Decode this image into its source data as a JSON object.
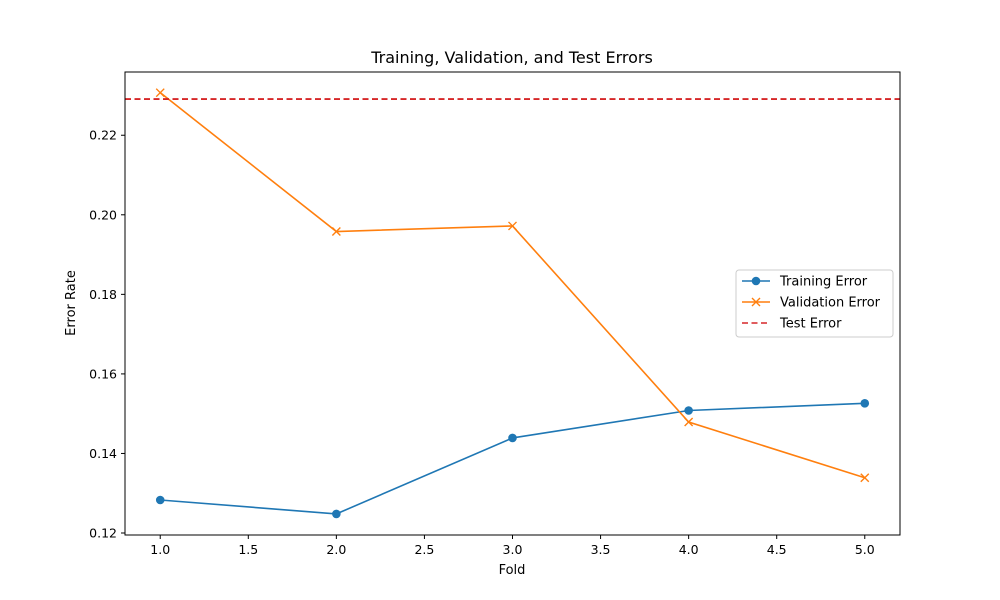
{
  "chart_data": {
    "type": "line",
    "title": "Training, Validation, and Test Errors",
    "xlabel": "Fold",
    "ylabel": "Error Rate",
    "xlim": [
      0.8,
      5.2
    ],
    "ylim": [
      0.1195,
      0.2359
    ],
    "xticks": [
      1.0,
      1.5,
      2.0,
      2.5,
      3.0,
      3.5,
      4.0,
      4.5,
      5.0
    ],
    "xtick_labels": [
      "1.0",
      "1.5",
      "2.0",
      "2.5",
      "3.0",
      "3.5",
      "4.0",
      "4.5",
      "5.0"
    ],
    "yticks": [
      0.12,
      0.14,
      0.16,
      0.18,
      0.2,
      0.22
    ],
    "ytick_labels": [
      "0.12",
      "0.14",
      "0.16",
      "0.18",
      "0.20",
      "0.22"
    ],
    "grid": false,
    "legend_position": "center-right",
    "x": [
      1,
      2,
      3,
      4,
      5
    ],
    "series": [
      {
        "name": "Training Error",
        "values": [
          0.1283,
          0.1248,
          0.1439,
          0.1508,
          0.1526
        ],
        "color": "#1f77b4",
        "marker": "circle",
        "linestyle": "solid"
      },
      {
        "name": "Validation Error",
        "values": [
          0.2307,
          0.1958,
          0.1972,
          0.1479,
          0.1339
        ],
        "color": "#ff7f0e",
        "marker": "x",
        "linestyle": "solid"
      }
    ],
    "hlines": [
      {
        "name": "Test Error",
        "value": 0.2291,
        "color": "#d62728",
        "linestyle": "dashed"
      }
    ]
  }
}
